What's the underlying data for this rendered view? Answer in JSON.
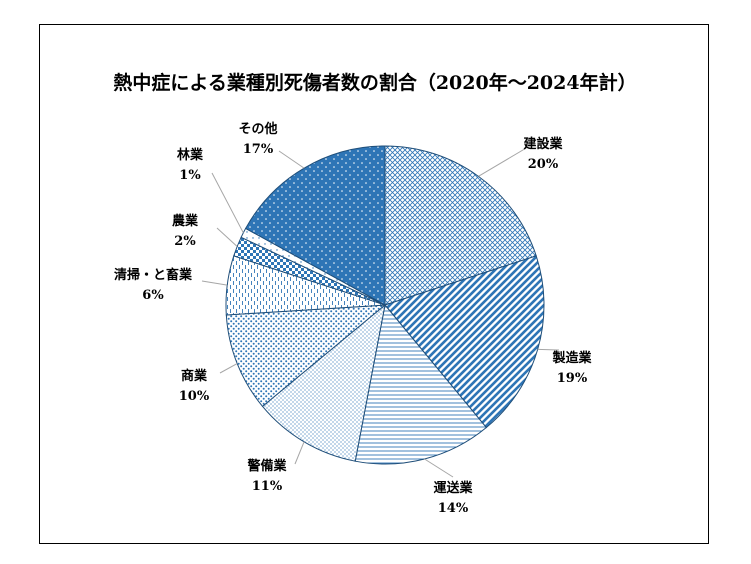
{
  "chart_data": {
    "type": "pie",
    "title": "熱中症による業種別死傷者数の割合（2020年～2024年計）",
    "start_angle_deg": 0,
    "direction": "clockwise",
    "legend": "none",
    "slices": [
      {
        "name": "建設業",
        "value": 20,
        "pct_label": "20%",
        "pattern": "crosshatch"
      },
      {
        "name": "製造業",
        "value": 19,
        "pct_label": "19%",
        "pattern": "diagonal-stripes"
      },
      {
        "name": "運送業",
        "value": 14,
        "pct_label": "14%",
        "pattern": "horizontal-lines"
      },
      {
        "name": "警備業",
        "value": 11,
        "pct_label": "11%",
        "pattern": "small-grid"
      },
      {
        "name": "商業",
        "value": 10,
        "pct_label": "10%",
        "pattern": "dots"
      },
      {
        "name": "清掃・と畜業",
        "value": 6,
        "pct_label": "6%",
        "pattern": "vertical-dashes"
      },
      {
        "name": "農業",
        "value": 2,
        "pct_label": "2%",
        "pattern": "checker"
      },
      {
        "name": "林業",
        "value": 1,
        "pct_label": "1%",
        "pattern": "dots-sparse"
      },
      {
        "name": "その他",
        "value": 17,
        "pct_label": "17%",
        "pattern": "solid-dots"
      }
    ],
    "colors": {
      "primary": "#2e75b6",
      "fill_dark": "#2e75b6",
      "outline": "#1f4e79"
    }
  }
}
